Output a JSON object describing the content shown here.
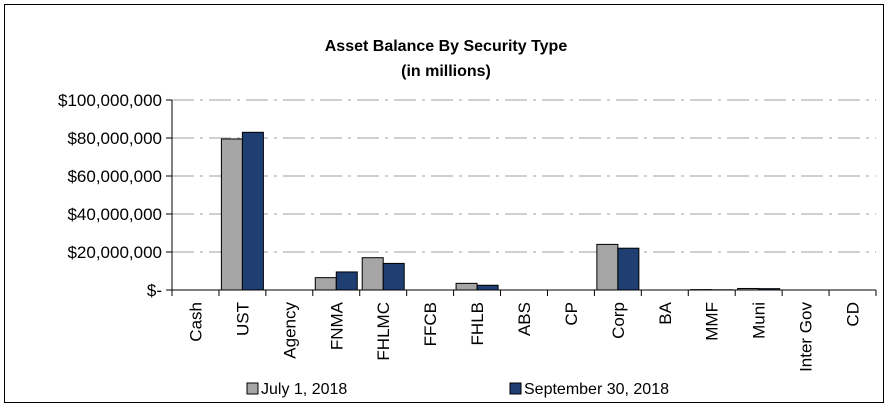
{
  "chart_data": {
    "type": "bar",
    "title": "Asset Balance By Security Type",
    "subtitle": "(in millions)",
    "xlabel": "",
    "ylabel": "",
    "ylim": [
      0,
      100000000
    ],
    "yticks": [
      0,
      20000000,
      40000000,
      60000000,
      80000000,
      100000000
    ],
    "ytick_labels": [
      "$-",
      "$20,000,000",
      "$40,000,000",
      "$60,000,000",
      "$80,000,000",
      "$100,000,000"
    ],
    "grid": true,
    "legend_position": "bottom",
    "categories": [
      "Cash",
      "UST",
      "Agency",
      "FNMA",
      "FHLMC",
      "FFCB",
      "FHLB",
      "ABS",
      "CP",
      "Corp",
      "BA",
      "MMF",
      "Muni",
      "Inter Gov",
      "CD"
    ],
    "series": [
      {
        "name": "July 1, 2018",
        "color": "#a6a6a6",
        "values": [
          0,
          79500000,
          0,
          6500000,
          17000000,
          0,
          3500000,
          0,
          0,
          24000000,
          0,
          200000,
          800000,
          0,
          0
        ]
      },
      {
        "name": "September 30, 2018",
        "color": "#1f3f73",
        "values": [
          0,
          83000000,
          0,
          9500000,
          14000000,
          0,
          2500000,
          0,
          0,
          22000000,
          0,
          100000,
          700000,
          0,
          0
        ]
      }
    ]
  }
}
